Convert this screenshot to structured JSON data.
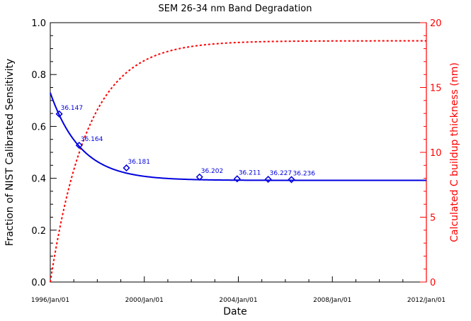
{
  "chart_data": {
    "type": "line",
    "title": "SEM 26-34 nm Band Degradation",
    "xlabel": "Date",
    "ylabel_left": "Fraction of NIST Calibrated Sensitivity",
    "ylabel_right": "Calculated C buildup thickness (nm)",
    "x_ticks": [
      {
        "year": 1996.0,
        "label": "1996/Jan/01"
      },
      {
        "year": 2000.0,
        "label": "2000/Jan/01"
      },
      {
        "year": 2004.0,
        "label": "2004/Jan/01"
      },
      {
        "year": 2008.0,
        "label": "2008/Jan/01"
      },
      {
        "year": 2012.0,
        "label": "2012/Jan/01"
      }
    ],
    "xlim": [
      1996.0,
      2012.0
    ],
    "ylim_left": [
      0.0,
      1.0
    ],
    "y_ticks_left": [
      "0.0",
      "0.2",
      "0.4",
      "0.6",
      "0.8",
      "1.0"
    ],
    "ylim_right": [
      0,
      20
    ],
    "y_ticks_right": [
      "0",
      "5",
      "10",
      "15",
      "20"
    ],
    "colors": {
      "sensitivity": "#0000dd",
      "thickness": "#ff0000",
      "axes": "#000000"
    },
    "series": [
      {
        "name": "Fraction of NIST Calibrated Sensitivity (fit)",
        "axis": "left",
        "style": "solid",
        "model": {
          "type": "exponential_decay",
          "asymptote": 0.392,
          "amplitude": 0.338,
          "tau_years": 1.3,
          "start_year": 1996.0
        }
      },
      {
        "name": "Calculated C buildup thickness (nm)",
        "axis": "right",
        "style": "dashed",
        "model": {
          "type": "exponential_growth",
          "max": 18.6,
          "tau_years": 1.6,
          "start_year": 1996.0
        }
      }
    ],
    "points": [
      {
        "x": 1996.38,
        "y": 0.648,
        "label": "36.147"
      },
      {
        "x": 1997.23,
        "y": 0.527,
        "label": "36.164"
      },
      {
        "x": 1999.24,
        "y": 0.44,
        "label": "36.181"
      },
      {
        "x": 2002.35,
        "y": 0.405,
        "label": "36.202"
      },
      {
        "x": 2003.95,
        "y": 0.398,
        "label": "36.211"
      },
      {
        "x": 2005.27,
        "y": 0.396,
        "label": "36.227"
      },
      {
        "x": 2006.26,
        "y": 0.395,
        "label": "36.236"
      }
    ]
  }
}
